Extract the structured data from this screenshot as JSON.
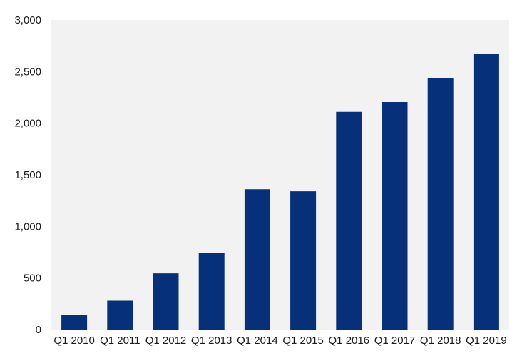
{
  "chart_data": {
    "type": "bar",
    "categories": [
      "Q1 2010",
      "Q1 2011",
      "Q1 2012",
      "Q1 2013",
      "Q1 2014",
      "Q1 2015",
      "Q1 2016",
      "Q1 2017",
      "Q1 2018",
      "Q1 2019"
    ],
    "values": [
      140,
      280,
      545,
      745,
      1360,
      1340,
      2110,
      2205,
      2435,
      2675
    ],
    "title": "",
    "xlabel": "",
    "ylabel": "",
    "ylim": [
      0,
      3000
    ],
    "yticks": [
      0,
      500,
      1000,
      1500,
      2000,
      2500,
      3000
    ],
    "ytick_labels": [
      "0",
      "500",
      "1,000",
      "1,500",
      "2,000",
      "2,500",
      "3,000"
    ],
    "grid": false,
    "legend": "none",
    "colors": {
      "bar": "#06307a",
      "plot_background": "#f2f2f2",
      "text": "#1a1a1a"
    }
  }
}
